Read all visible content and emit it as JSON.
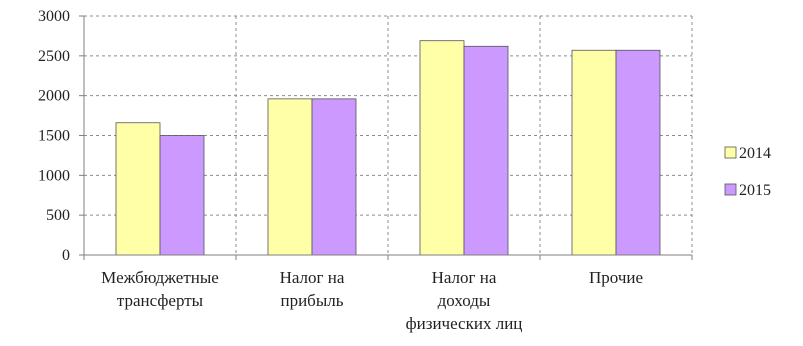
{
  "chart_data": {
    "type": "bar",
    "categories": [
      [
        "Межбюджетные",
        "трансферты"
      ],
      [
        "Налог на",
        "прибыль"
      ],
      [
        "Налог на",
        "доходы",
        "физических лиц"
      ],
      [
        "Прочие"
      ]
    ],
    "series": [
      {
        "name": "2014",
        "values": [
          1660,
          1960,
          2690,
          2570
        ],
        "color": "#ffffa8"
      },
      {
        "name": "2015",
        "values": [
          1500,
          1960,
          2620,
          2570
        ],
        "color": "#cc99ff"
      }
    ],
    "ylim": [
      0,
      3000
    ],
    "yticks": [
      "0",
      "500",
      "1000",
      "1500",
      "2000",
      "2500",
      "3000"
    ],
    "ytick_values": [
      0,
      500,
      1000,
      1500,
      2000,
      2500,
      3000
    ],
    "grid": true,
    "grid_style": "dashed",
    "legend_position": "right",
    "title": "",
    "xlabel": "",
    "ylabel": ""
  }
}
